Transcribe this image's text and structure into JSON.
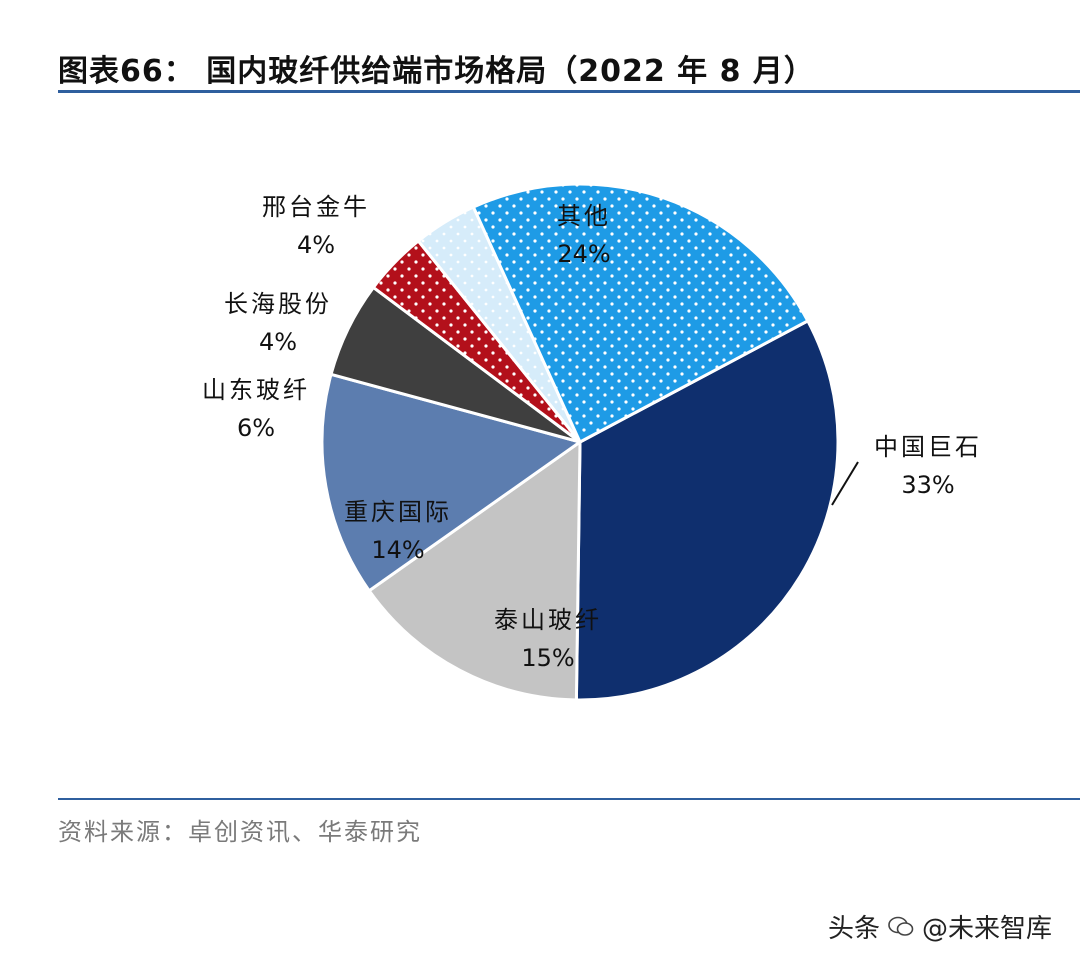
{
  "title": "图表66：  国内玻纤供给端市场格局（2022 年 8 月）",
  "source": "资料来源：卓创资讯、华泰研究",
  "watermark": {
    "prefix": "头条",
    "handle": "@未来智库"
  },
  "chart_data": {
    "type": "pie",
    "title": "图表66：  国内玻纤供给端市场格局（2022 年 8 月）",
    "slices": [
      {
        "name": "中国巨石",
        "label": "33%",
        "value": 33,
        "color": "#0f2f6e",
        "pattern": "none",
        "text_color": "#111111"
      },
      {
        "name": "泰山玻纤",
        "label": "15%",
        "value": 15,
        "color": "#c4c4c4",
        "pattern": "none",
        "text_color": "#111111"
      },
      {
        "name": "重庆国际",
        "label": "14%",
        "value": 14,
        "color": "#5c7daf",
        "pattern": "none",
        "text_color": "#111111"
      },
      {
        "name": "山东玻纤",
        "label": "6%",
        "value": 6,
        "color": "#3f3f3f",
        "pattern": "none",
        "text_color": "#111111"
      },
      {
        "name": "长海股份",
        "label": "4%",
        "value": 4,
        "color": "#b3101b",
        "pattern": "dots",
        "text_color": "#111111"
      },
      {
        "name": "邢台金牛",
        "label": "4%",
        "value": 4,
        "color": "#d6ecfa",
        "pattern": "dots",
        "text_color": "#111111"
      },
      {
        "name": "其他",
        "label": "24%",
        "value": 24,
        "color": "#1e9be6",
        "pattern": "dots",
        "text_color": "#111111"
      }
    ],
    "legend": "none"
  }
}
